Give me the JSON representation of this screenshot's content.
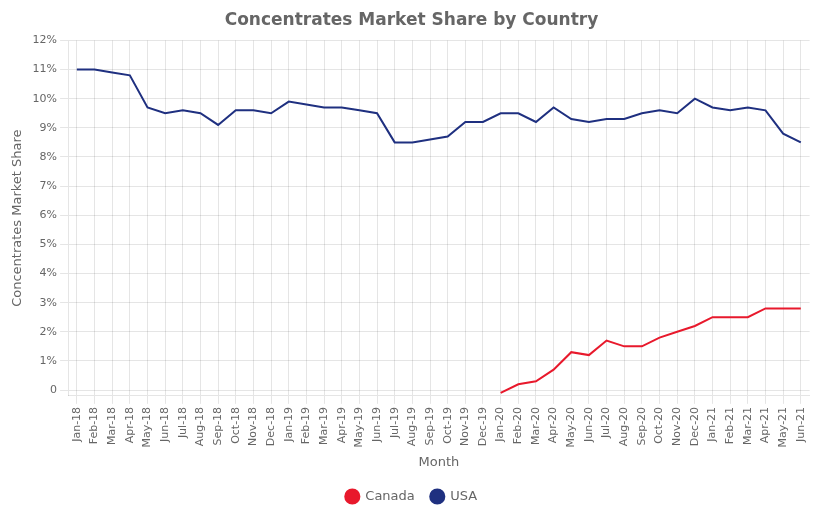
{
  "chart_data": {
    "type": "line",
    "title": "Concentrates Market Share by Country",
    "xlabel": "Month",
    "ylabel": "Concentrates Market Share",
    "categories": [
      "Jan-18",
      "Feb-18",
      "Mar-18",
      "Apr-18",
      "May-18",
      "Jun-18",
      "Jul-18",
      "Aug-18",
      "Sep-18",
      "Oct-18",
      "Nov-18",
      "Dec-18",
      "Jan-19",
      "Feb-19",
      "Mar-19",
      "Apr-19",
      "May-19",
      "Jun-19",
      "Jul-19",
      "Aug-19",
      "Sep-19",
      "Oct-19",
      "Nov-19",
      "Dec-19",
      "Jan-20",
      "Feb-20",
      "Mar-20",
      "Apr-20",
      "May-20",
      "Jun-20",
      "Jul-20",
      "Aug-20",
      "Sep-20",
      "Oct-20",
      "Nov-20",
      "Dec-20",
      "Jan-21",
      "Feb-21",
      "Mar-21",
      "Apr-21",
      "May-21",
      "Jun-21"
    ],
    "series": [
      {
        "name": "USA",
        "color": "#1f3080",
        "values": [
          0.11,
          0.11,
          0.109,
          0.108,
          0.097,
          0.095,
          0.096,
          0.095,
          0.091,
          0.096,
          0.096,
          0.095,
          0.099,
          0.098,
          0.097,
          0.097,
          0.096,
          0.095,
          0.085,
          0.085,
          0.086,
          0.087,
          0.092,
          0.092,
          0.095,
          0.095,
          0.092,
          0.097,
          0.093,
          0.092,
          0.093,
          0.093,
          0.095,
          0.096,
          0.095,
          0.1,
          0.097,
          0.096,
          0.097,
          0.096,
          0.088,
          0.085
        ]
      },
      {
        "name": "Canada",
        "color": "#e8192c",
        "values": [
          null,
          null,
          null,
          null,
          null,
          null,
          null,
          null,
          null,
          null,
          null,
          null,
          null,
          null,
          null,
          null,
          null,
          null,
          null,
          null,
          null,
          null,
          null,
          null,
          -0.001,
          0.002,
          0.003,
          0.007,
          0.013,
          0.012,
          0.017,
          0.015,
          0.015,
          0.018,
          0.02,
          0.022,
          0.025,
          0.025,
          0.025,
          0.028,
          0.028,
          0.028
        ]
      }
    ],
    "ylim": [
      -0.002,
      0.12
    ],
    "yticks": [
      0,
      {
        "value": 0.01,
        "label": "1%"
      },
      {
        "value": 0.02,
        "label": "2%"
      },
      {
        "value": 0.03,
        "label": "3%"
      },
      {
        "value": 0.04,
        "label": "4%"
      },
      {
        "value": 0.05,
        "label": "5%"
      },
      {
        "value": 0.06,
        "label": "6%"
      },
      {
        "value": 0.07,
        "label": "7%"
      },
      {
        "value": 0.08,
        "label": "8%"
      },
      {
        "value": 0.09,
        "label": "9%"
      },
      {
        "value": 0.1,
        "label": "10%"
      },
      {
        "value": 0.11,
        "label": "11%"
      },
      {
        "value": 0.12,
        "label": "12%"
      }
    ],
    "grid": true,
    "legend": "bottom"
  }
}
